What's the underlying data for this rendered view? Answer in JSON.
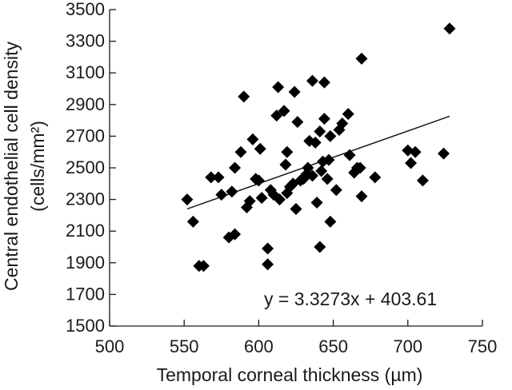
{
  "chart_data": {
    "type": "scatter",
    "xlabel": "Temporal corneal thickness (µm)",
    "ylabel": "Central endothelial cell density",
    "ylabel_unit": "(cells/mm²)",
    "xlim": [
      500,
      750
    ],
    "ylim": [
      1500,
      3500
    ],
    "xticks": [
      500,
      550,
      600,
      650,
      700,
      750
    ],
    "yticks": [
      1500,
      1700,
      1900,
      2100,
      2300,
      2500,
      2700,
      2900,
      3100,
      3300,
      3500
    ],
    "annotation": "y = 3.3273x + 403.61",
    "trendline": {
      "slope": 3.3273,
      "intercept": 403.61,
      "x_range": [
        552,
        728
      ]
    },
    "marker": "diamond",
    "marker_color": "#000000",
    "points": [
      {
        "x": 552,
        "y": 2300
      },
      {
        "x": 556,
        "y": 2160
      },
      {
        "x": 560,
        "y": 1880
      },
      {
        "x": 563,
        "y": 1880
      },
      {
        "x": 568,
        "y": 2440
      },
      {
        "x": 573,
        "y": 2440
      },
      {
        "x": 575,
        "y": 2330
      },
      {
        "x": 580,
        "y": 2060
      },
      {
        "x": 582,
        "y": 2350
      },
      {
        "x": 584,
        "y": 2080
      },
      {
        "x": 584,
        "y": 2500
      },
      {
        "x": 588,
        "y": 2600
      },
      {
        "x": 590,
        "y": 2950
      },
      {
        "x": 592,
        "y": 2250
      },
      {
        "x": 594,
        "y": 2290
      },
      {
        "x": 596,
        "y": 2680
      },
      {
        "x": 598,
        "y": 2430
      },
      {
        "x": 600,
        "y": 2420
      },
      {
        "x": 601,
        "y": 2620
      },
      {
        "x": 602,
        "y": 2310
      },
      {
        "x": 606,
        "y": 1990
      },
      {
        "x": 606,
        "y": 1890
      },
      {
        "x": 608,
        "y": 2360
      },
      {
        "x": 610,
        "y": 2330
      },
      {
        "x": 612,
        "y": 2830
      },
      {
        "x": 613,
        "y": 3010
      },
      {
        "x": 614,
        "y": 2300
      },
      {
        "x": 617,
        "y": 2860
      },
      {
        "x": 618,
        "y": 2520
      },
      {
        "x": 619,
        "y": 2600
      },
      {
        "x": 619,
        "y": 2340
      },
      {
        "x": 621,
        "y": 2380
      },
      {
        "x": 623,
        "y": 2400
      },
      {
        "x": 624,
        "y": 2980
      },
      {
        "x": 625,
        "y": 2240
      },
      {
        "x": 626,
        "y": 2790
      },
      {
        "x": 628,
        "y": 2420
      },
      {
        "x": 630,
        "y": 2430
      },
      {
        "x": 632,
        "y": 2460
      },
      {
        "x": 633,
        "y": 2500
      },
      {
        "x": 634,
        "y": 2670
      },
      {
        "x": 636,
        "y": 3050
      },
      {
        "x": 636,
        "y": 2450
      },
      {
        "x": 638,
        "y": 2660
      },
      {
        "x": 639,
        "y": 2280
      },
      {
        "x": 641,
        "y": 2730
      },
      {
        "x": 641,
        "y": 2000
      },
      {
        "x": 642,
        "y": 2480
      },
      {
        "x": 643,
        "y": 2540
      },
      {
        "x": 644,
        "y": 2810
      },
      {
        "x": 644,
        "y": 3040
      },
      {
        "x": 646,
        "y": 2430
      },
      {
        "x": 647,
        "y": 2550
      },
      {
        "x": 648,
        "y": 2160
      },
      {
        "x": 648,
        "y": 2700
      },
      {
        "x": 652,
        "y": 2360
      },
      {
        "x": 654,
        "y": 2740
      },
      {
        "x": 656,
        "y": 2780
      },
      {
        "x": 660,
        "y": 2840
      },
      {
        "x": 661,
        "y": 2580
      },
      {
        "x": 664,
        "y": 2470
      },
      {
        "x": 666,
        "y": 2500
      },
      {
        "x": 668,
        "y": 2500
      },
      {
        "x": 669,
        "y": 3190
      },
      {
        "x": 669,
        "y": 2320
      },
      {
        "x": 678,
        "y": 2440
      },
      {
        "x": 700,
        "y": 2610
      },
      {
        "x": 702,
        "y": 2530
      },
      {
        "x": 705,
        "y": 2600
      },
      {
        "x": 710,
        "y": 2420
      },
      {
        "x": 724,
        "y": 2590
      },
      {
        "x": 728,
        "y": 3380
      }
    ]
  }
}
